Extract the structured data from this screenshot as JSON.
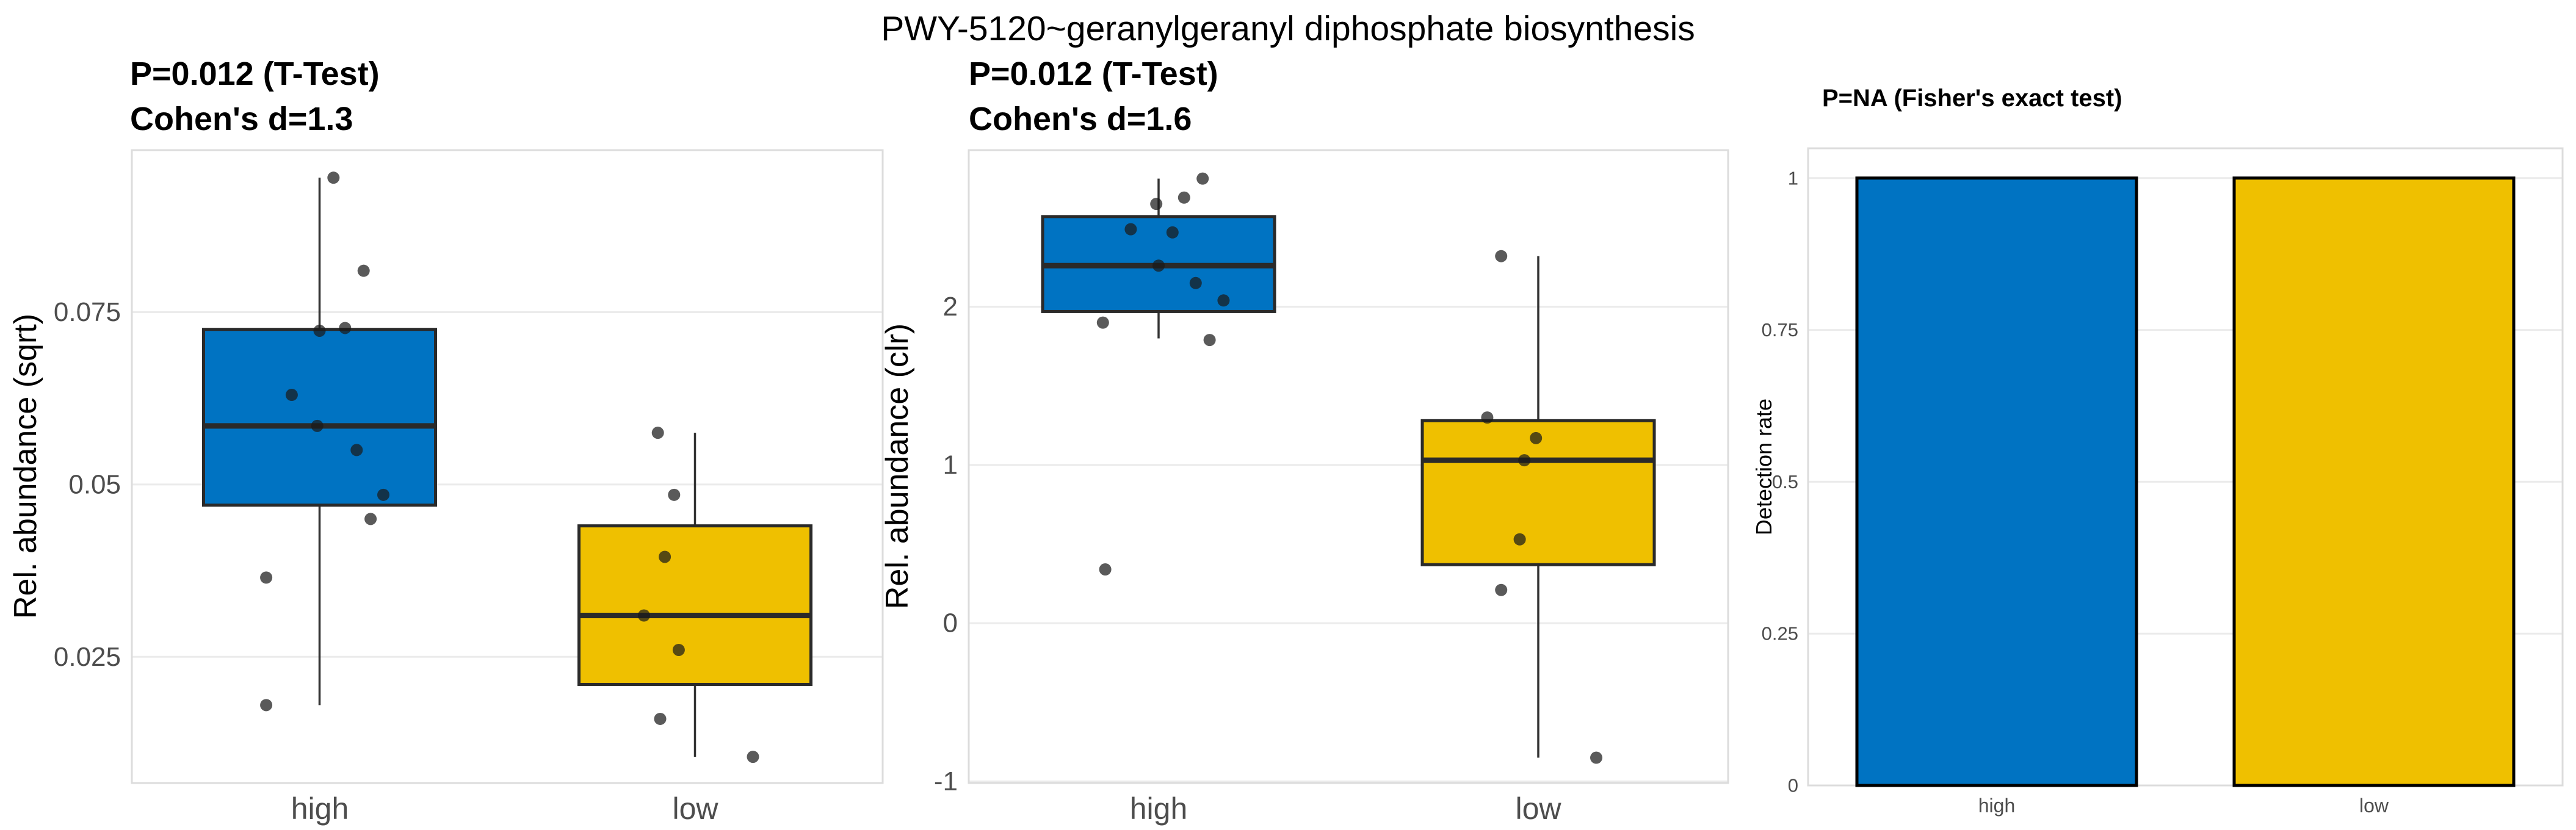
{
  "figure": {
    "title": "PWY-5120~geranylgeranyl diphosphate biosynthesis"
  },
  "palette": {
    "high": "#0073C2",
    "low": "#EFC000",
    "box_stroke": "#2A2A2A",
    "whisker_stroke": "#333333",
    "bar_stroke": "#000000",
    "point": "#1A1A1A",
    "grid": "#EBEBEB",
    "panel_border": "#DCDCDC",
    "tick_text": "#4D4D4D"
  },
  "chart_data": [
    {
      "id": "sqrt",
      "type": "boxplot",
      "title_line1": "P=0.012 (T-Test)",
      "title_line2": "Cohen's d=1.3",
      "ylabel": "Rel. abundance (sqrt)",
      "categories": [
        "high",
        "low"
      ],
      "ylim": [
        0.0067,
        0.0985
      ],
      "yticks": [
        {
          "v": 0.075,
          "label": "0.075"
        },
        {
          "v": 0.05,
          "label": "0.05"
        },
        {
          "v": 0.025,
          "label": "0.025"
        }
      ],
      "groups": [
        {
          "name": "high",
          "color_key": "high",
          "box": {
            "whisker_low": 0.018,
            "q1": 0.047,
            "median": 0.0585,
            "q3": 0.0725,
            "whisker_high": 0.0945
          },
          "points": [
            {
              "dx": 0.06,
              "v": 0.0945
            },
            {
              "dx": 0.19,
              "v": 0.081
            },
            {
              "dx": 0.11,
              "v": 0.0727
            },
            {
              "dx": 0.0,
              "v": 0.0723
            },
            {
              "dx": -0.12,
              "v": 0.063
            },
            {
              "dx": -0.01,
              "v": 0.0585
            },
            {
              "dx": 0.16,
              "v": 0.055
            },
            {
              "dx": 0.275,
              "v": 0.0485
            },
            {
              "dx": 0.22,
              "v": 0.045
            },
            {
              "dx": -0.23,
              "v": 0.0365
            },
            {
              "dx": -0.23,
              "v": 0.018
            }
          ]
        },
        {
          "name": "low",
          "color_key": "low",
          "box": {
            "whisker_low": 0.0105,
            "q1": 0.021,
            "median": 0.031,
            "q3": 0.044,
            "whisker_high": 0.0575
          },
          "points": [
            {
              "dx": -0.16,
              "v": 0.0575
            },
            {
              "dx": -0.09,
              "v": 0.0485
            },
            {
              "dx": -0.13,
              "v": 0.0395
            },
            {
              "dx": -0.22,
              "v": 0.031
            },
            {
              "dx": -0.07,
              "v": 0.026
            },
            {
              "dx": -0.15,
              "v": 0.016
            },
            {
              "dx": 0.25,
              "v": 0.0105
            }
          ]
        }
      ]
    },
    {
      "id": "clr",
      "type": "boxplot",
      "title_line1": "P=0.012 (T-Test)",
      "title_line2": "Cohen's d=1.6",
      "ylabel": "Rel. abundance (clr)",
      "categories": [
        "high",
        "low"
      ],
      "ylim": [
        -1.01,
        2.99
      ],
      "yticks": [
        {
          "v": 2,
          "label": "2"
        },
        {
          "v": 1,
          "label": "1"
        },
        {
          "v": 0,
          "label": "0"
        },
        {
          "v": -1,
          "label": "-1"
        }
      ],
      "groups": [
        {
          "name": "high",
          "color_key": "high",
          "box": {
            "whisker_low": 1.8,
            "q1": 1.97,
            "median": 2.26,
            "q3": 2.57,
            "whisker_high": 2.81
          },
          "points": [
            {
              "dx": 0.19,
              "v": 2.81
            },
            {
              "dx": 0.11,
              "v": 2.69
            },
            {
              "dx": -0.01,
              "v": 2.65
            },
            {
              "dx": -0.12,
              "v": 2.49
            },
            {
              "dx": 0.06,
              "v": 2.47
            },
            {
              "dx": 0.0,
              "v": 2.26
            },
            {
              "dx": 0.16,
              "v": 2.15
            },
            {
              "dx": 0.28,
              "v": 2.04
            },
            {
              "dx": -0.24,
              "v": 1.9
            },
            {
              "dx": 0.22,
              "v": 1.79
            },
            {
              "dx": -0.23,
              "v": 0.34
            }
          ]
        },
        {
          "name": "low",
          "color_key": "low",
          "box": {
            "whisker_low": -0.85,
            "q1": 0.37,
            "median": 1.03,
            "q3": 1.28,
            "whisker_high": 2.32
          },
          "points": [
            {
              "dx": -0.16,
              "v": 2.32
            },
            {
              "dx": -0.22,
              "v": 1.3
            },
            {
              "dx": -0.01,
              "v": 1.17
            },
            {
              "dx": -0.06,
              "v": 1.03
            },
            {
              "dx": -0.08,
              "v": 0.53
            },
            {
              "dx": -0.16,
              "v": 0.21
            },
            {
              "dx": 0.25,
              "v": -0.85
            }
          ]
        }
      ]
    },
    {
      "id": "detection",
      "type": "bar",
      "title_line1": "P=NA (Fisher's exact test)",
      "ylabel": "Detection rate",
      "categories": [
        "high",
        "low"
      ],
      "ylim": [
        0,
        1.049
      ],
      "yticks": [
        {
          "v": 1,
          "label": "1"
        },
        {
          "v": 0.75,
          "label": "0.75"
        },
        {
          "v": 0.5,
          "label": "0.5"
        },
        {
          "v": 0.25,
          "label": "0.25"
        },
        {
          "v": 0,
          "label": "0"
        }
      ],
      "bars": [
        {
          "name": "high",
          "color_key": "high",
          "value": 1
        },
        {
          "name": "low",
          "color_key": "low",
          "value": 1
        }
      ]
    }
  ]
}
